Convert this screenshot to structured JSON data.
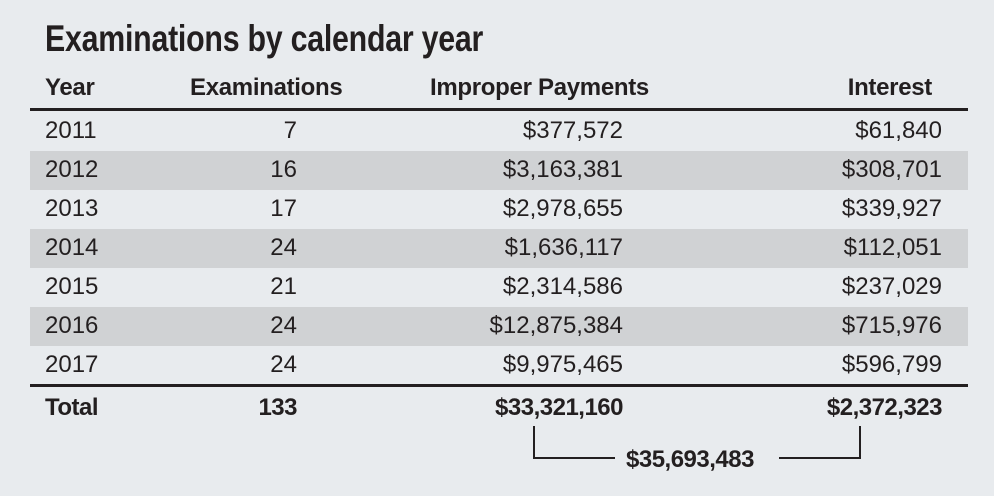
{
  "title": "Examinations by calendar year",
  "headers": [
    "Year",
    "Examinations",
    "Improper Payments",
    "Interest"
  ],
  "rows": [
    [
      "2011",
      "7",
      "$377,572",
      "$61,840"
    ],
    [
      "2012",
      "16",
      "$3,163,381",
      "$308,701"
    ],
    [
      "2013",
      "17",
      "$2,978,655",
      "$339,927"
    ],
    [
      "2014",
      "24",
      "$1,636,117",
      "$112,051"
    ],
    [
      "2015",
      "21",
      "$2,314,586",
      "$237,029"
    ],
    [
      "2016",
      "24",
      "$12,875,384",
      "$715,976"
    ],
    [
      "2017",
      "24",
      "$9,975,465",
      "$596,799"
    ]
  ],
  "total": [
    "Total",
    "133",
    "$33,321,160",
    "$2,372,323"
  ],
  "grand_total": "$35,693,483",
  "colors": {
    "background": "#e8ebee",
    "band": "#d0d2d4",
    "text": "#231f20"
  },
  "chart_data": {
    "type": "table",
    "title": "Examinations by calendar year",
    "columns": [
      "Year",
      "Examinations",
      "Improper Payments",
      "Interest"
    ],
    "rows": [
      [
        2011,
        7,
        377572,
        61840
      ],
      [
        2012,
        16,
        3163381,
        308701
      ],
      [
        2013,
        17,
        2978655,
        339927
      ],
      [
        2014,
        24,
        1636117,
        112051
      ],
      [
        2015,
        21,
        2314586,
        237029
      ],
      [
        2016,
        24,
        12875384,
        715976
      ],
      [
        2017,
        24,
        9975465,
        596799
      ]
    ],
    "total": {
      "examinations": 133,
      "improper_payments": 33321160,
      "interest": 2372323
    },
    "combined_total": 35693483
  }
}
